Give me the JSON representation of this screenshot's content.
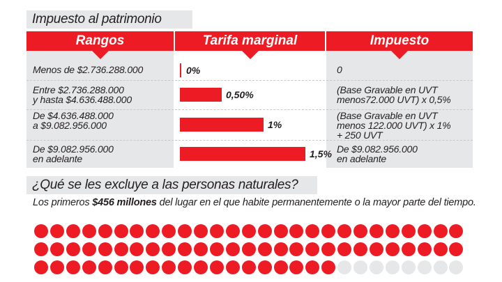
{
  "title": "Impuesto al patrimonio",
  "headers": [
    "Rangos",
    "Tarifa marginal",
    "Impuesto"
  ],
  "rows": [
    {
      "range": [
        "Menos de $2.736.288.000"
      ],
      "rate_label": "0%",
      "tax": [
        "0"
      ]
    },
    {
      "range": [
        "Entre $2.736.288.000",
        "y hasta $4.636.488.000"
      ],
      "rate_label": "0,50%",
      "tax": [
        "(Base Gravable en UVT",
        "menos72.000 UVT) x 0,5%"
      ]
    },
    {
      "range": [
        "De $4.636.488.000",
        "a $9.082.956.000"
      ],
      "rate_label": "1%",
      "tax": [
        "(Base Gravable en UVT",
        "menos 122.000 UVT) x 1%",
        "+ 250 UVT"
      ]
    },
    {
      "range": [
        "De $9.082.956.000",
        "en adelante"
      ],
      "rate_label": "1,5%",
      "tax": [
        "De $9.082.956.000",
        "en adelante"
      ]
    }
  ],
  "chart_data": {
    "type": "bar",
    "orientation": "horizontal",
    "categories": [
      "Menos de $2.736.288.000",
      "Entre $2.736.288.000 y hasta $4.636.488.000",
      "De $4.636.488.000 a $9.082.956.000",
      "De $9.082.956.000 en adelante"
    ],
    "values": [
      0,
      0.5,
      1,
      1.5
    ],
    "data_labels": [
      "0%",
      "0,50%",
      "1%",
      "1,5%"
    ],
    "xlim": [
      0,
      1.5
    ]
  },
  "section2": {
    "title": "¿Qué se les excluye a las personas naturales?",
    "text_before": "Los primeros ",
    "text_bold": "$456 millones",
    "text_after": " del lugar en el que habite permanentemente o la mayor parte del tiempo."
  },
  "dots": {
    "total": 81,
    "filled": 73,
    "per_row": 27
  },
  "colors": {
    "accent": "#ed1c24",
    "panel": "#e6e7e8",
    "empty_dot": "#e6e7e8"
  }
}
